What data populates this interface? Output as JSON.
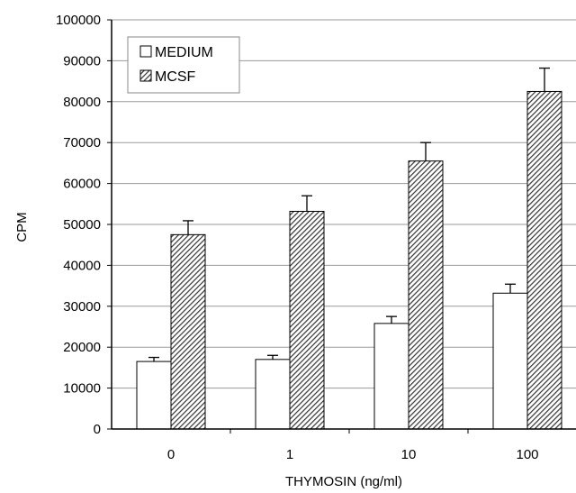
{
  "chart_data": {
    "type": "bar",
    "xlabel": "THYMOSIN (ng/ml)",
    "ylabel": "CPM",
    "categories": [
      "0",
      "1",
      "10",
      "100"
    ],
    "ylim": [
      0,
      100000
    ],
    "yticks": [
      "0",
      "10000",
      "20000",
      "30000",
      "40000",
      "50000",
      "60000",
      "70000",
      "80000",
      "90000",
      "100000"
    ],
    "grid": "horizontal",
    "legend_position": "top-left",
    "series": [
      {
        "name": "MEDIUM",
        "fill": "#ffffff",
        "pattern": "none",
        "values": [
          16500,
          17000,
          25800,
          33200
        ],
        "errors": [
          1000,
          1000,
          1700,
          2200
        ]
      },
      {
        "name": "MCSF",
        "fill": "#555555",
        "pattern": "diagonal-hatch",
        "values": [
          47500,
          53200,
          65500,
          82500
        ],
        "errors": [
          3400,
          3800,
          4500,
          5700
        ]
      }
    ]
  }
}
